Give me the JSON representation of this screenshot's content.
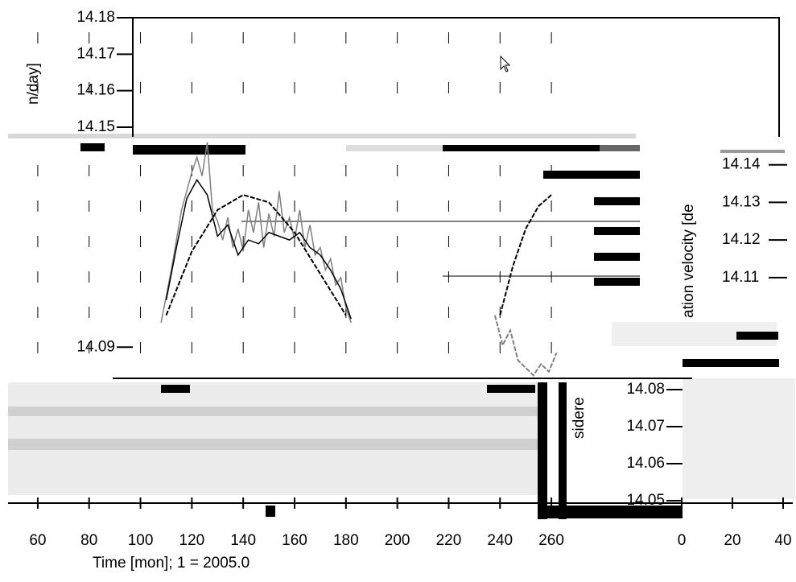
{
  "chart_data": {
    "type": "line",
    "x_label": "Time [mon]; 1 = 2005.0",
    "y_label_fragments": [
      "n/day]",
      "ation velocity [de",
      "sidere"
    ],
    "xlim": [
      50,
      270
    ],
    "xticks": [
      60,
      80,
      100,
      120,
      140,
      160,
      180,
      200,
      220,
      240,
      260
    ],
    "x2ticks": [
      0,
      20,
      40
    ],
    "ylim": [
      14.08,
      14.15
    ],
    "yticks": [
      14.14,
      14.13,
      14.12,
      14.11
    ],
    "yticks_top_left": [
      14.18,
      14.17,
      14.16,
      14.15
    ],
    "yticks_lower_left": [
      14.09
    ],
    "yticks_lower_mid": [
      14.08,
      14.07,
      14.06,
      14.05
    ],
    "series": [
      {
        "color": "#808080",
        "x": [
          108,
          112,
          116,
          120,
          122,
          124,
          126,
          128,
          130,
          132,
          134,
          136,
          138,
          140,
          142,
          144,
          146,
          148,
          150,
          152,
          154,
          156,
          158,
          160,
          162,
          164,
          166,
          168,
          170,
          172,
          174,
          176,
          178,
          180,
          182
        ],
        "values": [
          14.098,
          14.112,
          14.128,
          14.138,
          14.142,
          14.137,
          14.146,
          14.128,
          14.125,
          14.12,
          14.126,
          14.118,
          14.123,
          14.117,
          14.128,
          14.122,
          14.13,
          14.118,
          14.127,
          14.121,
          14.133,
          14.122,
          14.126,
          14.12,
          14.128,
          14.118,
          14.124,
          14.116,
          14.118,
          14.112,
          14.115,
          14.108,
          14.11,
          14.102,
          14.098
        ]
      },
      {
        "color": "#000000",
        "x": [
          110,
          114,
          118,
          122,
          126,
          130,
          134,
          138,
          142,
          146,
          150,
          154,
          158,
          162,
          166,
          170,
          174,
          178,
          182
        ],
        "values": [
          14.104,
          14.118,
          14.131,
          14.136,
          14.132,
          14.121,
          14.124,
          14.116,
          14.12,
          14.119,
          14.122,
          14.121,
          14.12,
          14.122,
          14.118,
          14.116,
          14.112,
          14.107,
          14.099
        ]
      },
      {
        "color": "#000000",
        "x": [
          110,
          120,
          130,
          140,
          150,
          160,
          170,
          180
        ],
        "values": [
          14.1,
          14.117,
          14.128,
          14.132,
          14.13,
          14.122,
          14.111,
          14.1
        ]
      },
      {
        "color": "#000000",
        "x": [
          240,
          245,
          250,
          255,
          260
        ],
        "values": [
          14.1,
          14.113,
          14.123,
          14.129,
          14.132
        ]
      },
      {
        "color": "#808080",
        "x": [
          238,
          241,
          244,
          247,
          250,
          253,
          256,
          259,
          262
        ],
        "values": [
          14.1,
          14.092,
          14.096,
          14.088,
          14.086,
          14.084,
          14.087,
          14.085,
          14.09
        ]
      }
    ]
  }
}
